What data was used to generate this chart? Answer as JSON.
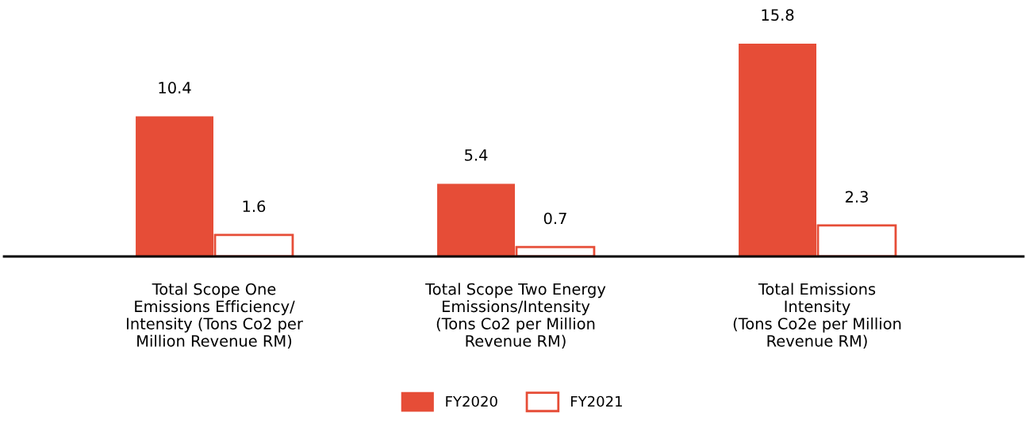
{
  "chart_data": {
    "type": "bar",
    "categories": [
      "Total Scope One\nEmissions Efficiency/\nIntensity (Tons Co2 per\nMillion Revenue RM)",
      "Total Scope Two Energy\nEmissions/Intensity\n(Tons Co2 per Million\nRevenue RM)",
      "Total Emissions\nIntensity\n(Tons Co2e per Million\nRevenue RM)"
    ],
    "series": [
      {
        "name": "FY2020",
        "color": "#e64d37",
        "values": [
          10.4,
          5.4,
          15.8
        ]
      },
      {
        "name": "FY2021",
        "color": "#e64d37",
        "values": [
          1.6,
          0.7,
          2.3
        ]
      }
    ],
    "data_labels": true,
    "grid": false,
    "legend": "bottom"
  }
}
